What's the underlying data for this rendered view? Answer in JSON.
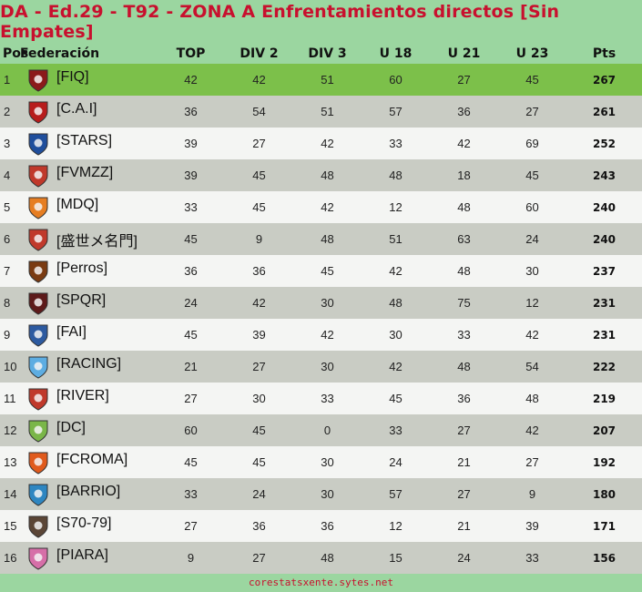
{
  "title": "DA - Ed.29 - T92 - ZONA A Enfrentamientos directos [Sin Empates]",
  "headers": [
    "Pos",
    "Federación",
    "TOP",
    "DIV 2",
    "DIV 3",
    "U 18",
    "U 21",
    "U 23",
    "Pts"
  ],
  "rows": [
    {
      "pos": "1",
      "fed": "[FIQ]",
      "top": "42",
      "div2": "42",
      "div3": "51",
      "u18": "60",
      "u21": "27",
      "u23": "45",
      "pts": "267",
      "logo": "shield-crest-icon",
      "color": "#8b1a1a"
    },
    {
      "pos": "2",
      "fed": "[C.A.I]",
      "top": "36",
      "div2": "54",
      "div3": "51",
      "u18": "57",
      "u21": "36",
      "u23": "27",
      "pts": "261",
      "logo": "badge-icon",
      "color": "#b71c1c"
    },
    {
      "pos": "3",
      "fed": "[STARS]",
      "top": "39",
      "div2": "27",
      "div3": "42",
      "u18": "33",
      "u21": "42",
      "u23": "69",
      "pts": "252",
      "logo": "star-icon",
      "color": "#1f4e9c"
    },
    {
      "pos": "4",
      "fed": "[FVMZZ]",
      "top": "39",
      "div2": "45",
      "div3": "48",
      "u18": "48",
      "u21": "18",
      "u23": "45",
      "pts": "243",
      "logo": "mascot-icon",
      "color": "#c0392b"
    },
    {
      "pos": "5",
      "fed": "[MDQ]",
      "top": "33",
      "div2": "45",
      "div3": "42",
      "u18": "12",
      "u21": "48",
      "u23": "60",
      "pts": "240",
      "logo": "crest-icon",
      "color": "#e67e22"
    },
    {
      "pos": "6",
      "fed": "[盛世メ名門]",
      "top": "45",
      "div2": "9",
      "div3": "48",
      "u18": "51",
      "u21": "63",
      "u23": "24",
      "pts": "240",
      "logo": "dragon-crest-icon",
      "color": "#c0392b"
    },
    {
      "pos": "7",
      "fed": "[Perros]",
      "top": "36",
      "div2": "36",
      "div3": "45",
      "u18": "42",
      "u21": "48",
      "u23": "30",
      "pts": "237",
      "logo": "shield-icon",
      "color": "#7a3b12"
    },
    {
      "pos": "8",
      "fed": "[SPQR]",
      "top": "24",
      "div2": "42",
      "div3": "30",
      "u18": "48",
      "u21": "75",
      "u23": "12",
      "pts": "231",
      "logo": "eagle-icon",
      "color": "#5d1a1a"
    },
    {
      "pos": "9",
      "fed": "[FAI]",
      "top": "45",
      "div2": "39",
      "div3": "42",
      "u18": "30",
      "u21": "33",
      "u23": "42",
      "pts": "231",
      "logo": "fai-logo-icon",
      "color": "#2c5aa0"
    },
    {
      "pos": "10",
      "fed": "[RACING]",
      "top": "21",
      "div2": "27",
      "div3": "30",
      "u18": "42",
      "u21": "48",
      "u23": "54",
      "pts": "222",
      "logo": "striped-shield-icon",
      "color": "#5dade2"
    },
    {
      "pos": "11",
      "fed": "[RIVER]",
      "top": "27",
      "div2": "30",
      "div3": "33",
      "u18": "45",
      "u21": "36",
      "u23": "48",
      "pts": "219",
      "logo": "round-crest-icon",
      "color": "#c0392b"
    },
    {
      "pos": "12",
      "fed": "[DC]",
      "top": "60",
      "div2": "45",
      "div3": "0",
      "u18": "33",
      "u21": "27",
      "u23": "42",
      "pts": "207",
      "logo": "dc-logo-icon",
      "color": "#7ab648"
    },
    {
      "pos": "13",
      "fed": "[FCROMA]",
      "top": "45",
      "div2": "45",
      "div3": "30",
      "u18": "24",
      "u21": "21",
      "u23": "27",
      "pts": "192",
      "logo": "roma-crest-icon",
      "color": "#e05a1c"
    },
    {
      "pos": "14",
      "fed": "[BARRIO]",
      "top": "33",
      "div2": "24",
      "div3": "30",
      "u18": "57",
      "u21": "27",
      "u23": "9",
      "pts": "180",
      "logo": "barrio-crest-icon",
      "color": "#2e86c1"
    },
    {
      "pos": "15",
      "fed": "[S70-79]",
      "top": "27",
      "div2": "36",
      "div3": "36",
      "u18": "12",
      "u21": "21",
      "u23": "39",
      "pts": "171",
      "logo": "retro-shield-icon",
      "color": "#5b4636"
    },
    {
      "pos": "16",
      "fed": "[PIARA]",
      "top": "9",
      "div2": "27",
      "div3": "48",
      "u18": "15",
      "u21": "24",
      "u23": "33",
      "pts": "156",
      "logo": "pig-crest-icon",
      "color": "#d66fa8"
    }
  ],
  "footer": "corestatsxente.sytes.net",
  "colors": {
    "title": "#c8102e",
    "background": "#9bd6a0",
    "leader_row": "#7cc04a",
    "even_row": "#c9ccc4",
    "odd_row": "#f4f5f3"
  }
}
